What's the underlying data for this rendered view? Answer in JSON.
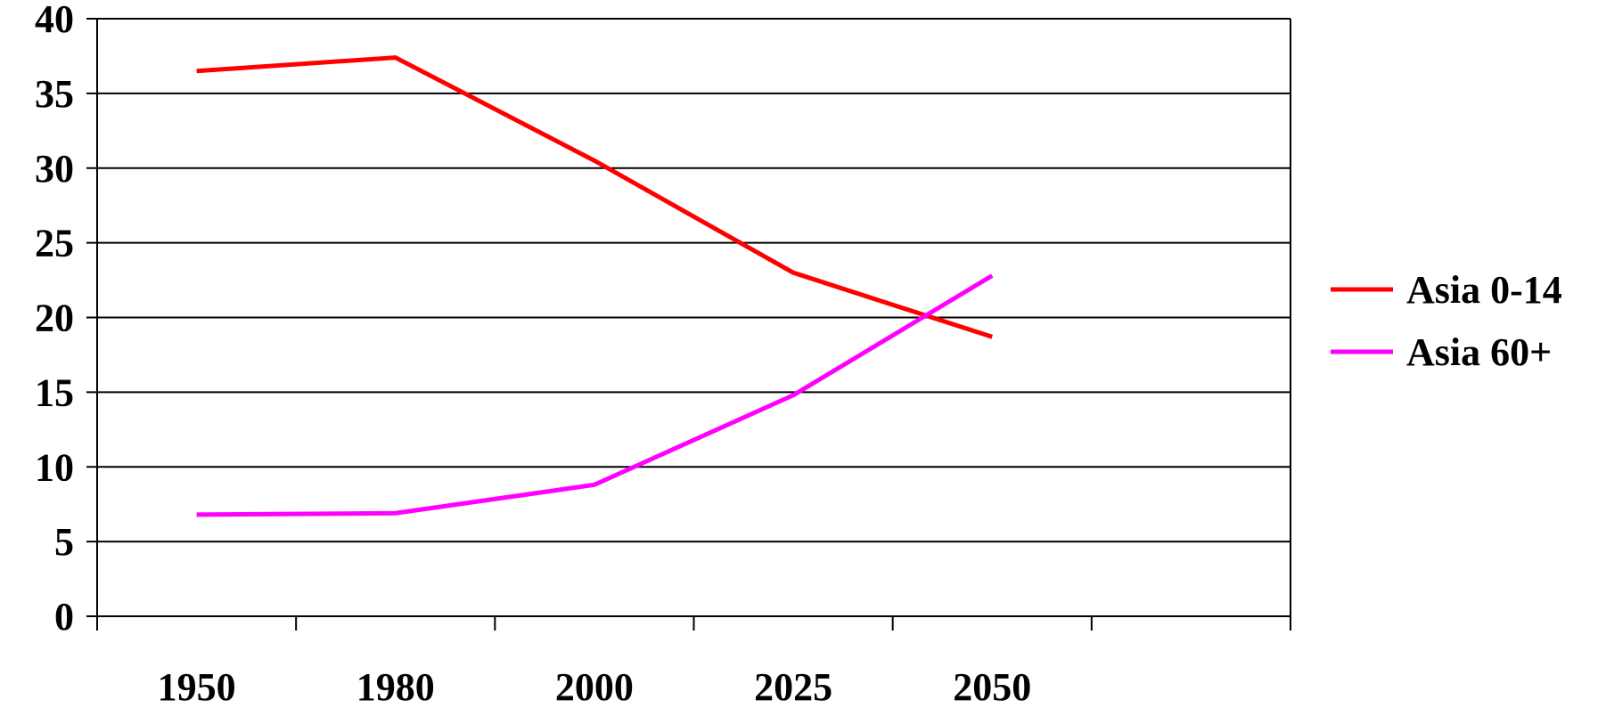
{
  "chart_data": {
    "type": "line",
    "title": "",
    "xlabel": "",
    "ylabel": "",
    "categories": [
      "1950",
      "1980",
      "2000",
      "2025",
      "2050"
    ],
    "extra_slots": 1,
    "ylim": [
      0,
      40
    ],
    "yticks": [
      0,
      5,
      10,
      15,
      20,
      25,
      30,
      35,
      40
    ],
    "grid": true,
    "legend_position": "right",
    "series": [
      {
        "name": "Asia 0-14",
        "color": "#ff0000",
        "values": [
          36.5,
          37.4,
          30.5,
          23.0,
          18.7
        ]
      },
      {
        "name": "Asia 60+",
        "color": "#ff00ff",
        "values": [
          6.8,
          6.9,
          8.8,
          14.8,
          22.8
        ]
      }
    ]
  }
}
